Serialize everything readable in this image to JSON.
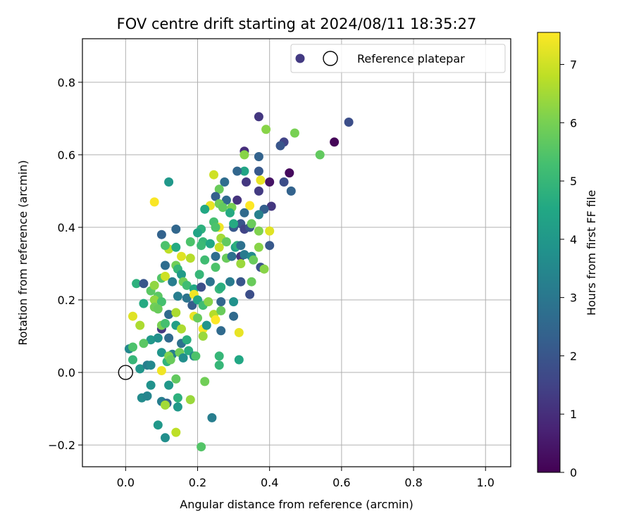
{
  "chart_data": {
    "type": "scatter",
    "title": "FOV centre drift starting at 2024/08/11 18:35:27",
    "xlabel": "Angular distance from reference (arcmin)",
    "ylabel": "Rotation from reference (arcmin)",
    "xlim": [
      -0.12,
      1.07
    ],
    "ylim": [
      -0.26,
      0.92
    ],
    "xticks": [
      0.0,
      0.2,
      0.4,
      0.6,
      0.8,
      1.0
    ],
    "xtick_labels": [
      "0.0",
      "0.2",
      "0.4",
      "0.6",
      "0.8",
      "1.0"
    ],
    "yticks": [
      -0.2,
      0.0,
      0.2,
      0.4,
      0.6,
      0.8
    ],
    "ytick_labels": [
      "−0.2",
      "0.0",
      "0.2",
      "0.4",
      "0.6",
      "0.8"
    ],
    "grid": true,
    "legend": {
      "placement": "top-right",
      "entries": [
        "Reference platepar"
      ]
    },
    "reference_point": {
      "x": 0.0,
      "y": 0.0
    },
    "colorbar": {
      "label": "Hours from first FF file",
      "min": 0,
      "max": 7.55,
      "ticks": [
        0,
        1,
        2,
        3,
        4,
        5,
        6,
        7
      ],
      "tick_labels": [
        "0",
        "1",
        "2",
        "3",
        "4",
        "5",
        "6",
        "7"
      ],
      "colormap": "viridis"
    },
    "points": [
      [
        0.62,
        0.69,
        1.8
      ],
      [
        0.58,
        0.635,
        0.1
      ],
      [
        0.47,
        0.66,
        6.0
      ],
      [
        0.39,
        0.67,
        6.2
      ],
      [
        0.37,
        0.705,
        1.2
      ],
      [
        0.44,
        0.635,
        1.5
      ],
      [
        0.43,
        0.625,
        2.0
      ],
      [
        0.54,
        0.6,
        5.7
      ],
      [
        0.33,
        0.61,
        1.0
      ],
      [
        0.33,
        0.6,
        6.2
      ],
      [
        0.37,
        0.595,
        2.4
      ],
      [
        0.455,
        0.55,
        0.2
      ],
      [
        0.37,
        0.555,
        2.1
      ],
      [
        0.33,
        0.555,
        4.4
      ],
      [
        0.31,
        0.555,
        2.5
      ],
      [
        0.245,
        0.545,
        7.0
      ],
      [
        0.4,
        0.525,
        0.4
      ],
      [
        0.375,
        0.53,
        7.3
      ],
      [
        0.44,
        0.525,
        1.8
      ],
      [
        0.335,
        0.525,
        1.2
      ],
      [
        0.275,
        0.525,
        2.7
      ],
      [
        0.26,
        0.505,
        5.8
      ],
      [
        0.12,
        0.525,
        4.0
      ],
      [
        0.37,
        0.5,
        1.3
      ],
      [
        0.46,
        0.5,
        2.4
      ],
      [
        0.08,
        0.47,
        7.5
      ],
      [
        0.25,
        0.485,
        2.3
      ],
      [
        0.28,
        0.475,
        2.6
      ],
      [
        0.31,
        0.475,
        1.1
      ],
      [
        0.345,
        0.46,
        7.6
      ],
      [
        0.235,
        0.46,
        7.3
      ],
      [
        0.26,
        0.465,
        5.9
      ],
      [
        0.27,
        0.455,
        5.7
      ],
      [
        0.295,
        0.455,
        6.0
      ],
      [
        0.22,
        0.45,
        4.5
      ],
      [
        0.29,
        0.44,
        4.6
      ],
      [
        0.405,
        0.458,
        1.2
      ],
      [
        0.385,
        0.45,
        2.3
      ],
      [
        0.33,
        0.44,
        2.6
      ],
      [
        0.37,
        0.435,
        3.3
      ],
      [
        0.245,
        0.415,
        5.3
      ],
      [
        0.26,
        0.4,
        7.4
      ],
      [
        0.3,
        0.4,
        2.1
      ],
      [
        0.32,
        0.41,
        2.0
      ],
      [
        0.33,
        0.395,
        1.5
      ],
      [
        0.345,
        0.4,
        2.0
      ],
      [
        0.35,
        0.41,
        5.8
      ],
      [
        0.3,
        0.41,
        4.6
      ],
      [
        0.25,
        0.4,
        5.4
      ],
      [
        0.21,
        0.395,
        4.8
      ],
      [
        0.14,
        0.395,
        2.5
      ],
      [
        0.1,
        0.38,
        2.4
      ],
      [
        0.2,
        0.385,
        4.4
      ],
      [
        0.215,
        0.36,
        5.0
      ],
      [
        0.18,
        0.36,
        5.4
      ],
      [
        0.12,
        0.34,
        6.8
      ],
      [
        0.11,
        0.35,
        5.4
      ],
      [
        0.14,
        0.345,
        4.6
      ],
      [
        0.21,
        0.35,
        5.1
      ],
      [
        0.235,
        0.355,
        4.5
      ],
      [
        0.265,
        0.37,
        6.5
      ],
      [
        0.28,
        0.36,
        5.7
      ],
      [
        0.305,
        0.345,
        4.3
      ],
      [
        0.31,
        0.35,
        4.8
      ],
      [
        0.32,
        0.35,
        2.8
      ],
      [
        0.4,
        0.35,
        2.1
      ],
      [
        0.37,
        0.345,
        6.2
      ],
      [
        0.4,
        0.39,
        7.2
      ],
      [
        0.37,
        0.39,
        6.1
      ],
      [
        0.26,
        0.345,
        6.9
      ],
      [
        0.155,
        0.32,
        7.2
      ],
      [
        0.18,
        0.315,
        6.7
      ],
      [
        0.22,
        0.31,
        5.2
      ],
      [
        0.28,
        0.315,
        5.8
      ],
      [
        0.295,
        0.32,
        2.8
      ],
      [
        0.32,
        0.32,
        1.1
      ],
      [
        0.33,
        0.325,
        3.1
      ],
      [
        0.35,
        0.32,
        3.6
      ],
      [
        0.355,
        0.31,
        5.8
      ],
      [
        0.25,
        0.32,
        2.7
      ],
      [
        0.11,
        0.295,
        2.7
      ],
      [
        0.14,
        0.295,
        5.9
      ],
      [
        0.145,
        0.285,
        5.0
      ],
      [
        0.155,
        0.27,
        4.1
      ],
      [
        0.205,
        0.27,
        5.0
      ],
      [
        0.25,
        0.29,
        5.4
      ],
      [
        0.32,
        0.3,
        6.4
      ],
      [
        0.375,
        0.29,
        1.9
      ],
      [
        0.385,
        0.285,
        6.2
      ],
      [
        0.1,
        0.26,
        5.5
      ],
      [
        0.11,
        0.265,
        7.0
      ],
      [
        0.13,
        0.25,
        3.2
      ],
      [
        0.16,
        0.25,
        5.9
      ],
      [
        0.17,
        0.24,
        5.2
      ],
      [
        0.19,
        0.23,
        4.5
      ],
      [
        0.21,
        0.235,
        1.8
      ],
      [
        0.235,
        0.25,
        2.9
      ],
      [
        0.26,
        0.23,
        5.0
      ],
      [
        0.265,
        0.235,
        4.7
      ],
      [
        0.29,
        0.25,
        3.1
      ],
      [
        0.32,
        0.25,
        2.0
      ],
      [
        0.35,
        0.25,
        5.8
      ],
      [
        0.345,
        0.215,
        1.8
      ],
      [
        0.03,
        0.245,
        4.8
      ],
      [
        0.05,
        0.245,
        2.0
      ],
      [
        0.07,
        0.225,
        5.6
      ],
      [
        0.08,
        0.24,
        6.3
      ],
      [
        0.09,
        0.21,
        5.6
      ],
      [
        0.08,
        0.2,
        6.3
      ],
      [
        0.1,
        0.195,
        5.3
      ],
      [
        0.05,
        0.19,
        4.6
      ],
      [
        0.08,
        0.18,
        5.9
      ],
      [
        0.09,
        0.175,
        5.8
      ],
      [
        0.12,
        0.16,
        2.6
      ],
      [
        0.14,
        0.165,
        6.6
      ],
      [
        0.145,
        0.21,
        3.2
      ],
      [
        0.17,
        0.205,
        2.9
      ],
      [
        0.185,
        0.185,
        2.2
      ],
      [
        0.19,
        0.215,
        7.4
      ],
      [
        0.2,
        0.2,
        4.4
      ],
      [
        0.215,
        0.185,
        5.2
      ],
      [
        0.23,
        0.195,
        6.2
      ],
      [
        0.245,
        0.16,
        6.7
      ],
      [
        0.265,
        0.195,
        2.5
      ],
      [
        0.265,
        0.17,
        5.8
      ],
      [
        0.3,
        0.195,
        3.8
      ],
      [
        0.3,
        0.155,
        2.6
      ],
      [
        0.02,
        0.155,
        7.2
      ],
      [
        0.04,
        0.13,
        6.6
      ],
      [
        0.1,
        0.12,
        1.2
      ],
      [
        0.1,
        0.13,
        6.0
      ],
      [
        0.11,
        0.135,
        5.3
      ],
      [
        0.14,
        0.13,
        4.2
      ],
      [
        0.155,
        0.12,
        6.6
      ],
      [
        0.19,
        0.155,
        7.3
      ],
      [
        0.2,
        0.15,
        5.8
      ],
      [
        0.215,
        0.12,
        7.5
      ],
      [
        0.225,
        0.13,
        3.9
      ],
      [
        0.25,
        0.145,
        7.6
      ],
      [
        0.265,
        0.115,
        2.6
      ],
      [
        0.315,
        0.11,
        7.3
      ],
      [
        0.07,
        0.09,
        4.0
      ],
      [
        0.09,
        0.095,
        3.7
      ],
      [
        0.12,
        0.095,
        2.6
      ],
      [
        0.155,
        0.08,
        2.8
      ],
      [
        0.17,
        0.09,
        4.7
      ],
      [
        0.215,
        0.1,
        6.4
      ],
      [
        0.1,
        0.055,
        3.9
      ],
      [
        0.13,
        0.05,
        3.2
      ],
      [
        0.15,
        0.055,
        5.9
      ],
      [
        0.175,
        0.06,
        4.7
      ],
      [
        0.19,
        0.045,
        3.4
      ],
      [
        0.16,
        0.04,
        3.7
      ],
      [
        0.01,
        0.065,
        3.5
      ],
      [
        0.02,
        0.07,
        5.4
      ],
      [
        0.02,
        0.035,
        5.0
      ],
      [
        0.05,
        0.08,
        5.6
      ],
      [
        0.04,
        0.01,
        3.9
      ],
      [
        0.06,
        0.02,
        3.2
      ],
      [
        0.07,
        0.02,
        3.5
      ],
      [
        0.1,
        0.005,
        7.4
      ],
      [
        0.115,
        0.03,
        4.9
      ],
      [
        0.12,
        0.045,
        6.1
      ],
      [
        0.125,
        0.035,
        5.8
      ],
      [
        0.195,
        0.045,
        5.4
      ],
      [
        0.26,
        0.045,
        5.0
      ],
      [
        0.26,
        0.02,
        5.0
      ],
      [
        0.315,
        0.035,
        4.5
      ],
      [
        0.07,
        -0.035,
        3.8
      ],
      [
        0.14,
        -0.018,
        5.7
      ],
      [
        0.12,
        -0.035,
        4.0
      ],
      [
        0.22,
        -0.025,
        5.9
      ],
      [
        0.045,
        -0.07,
        3.6
      ],
      [
        0.06,
        -0.065,
        3.4
      ],
      [
        0.1,
        -0.08,
        3.2
      ],
      [
        0.115,
        -0.085,
        2.4
      ],
      [
        0.11,
        -0.09,
        6.5
      ],
      [
        0.145,
        -0.095,
        4.0
      ],
      [
        0.145,
        -0.07,
        4.8
      ],
      [
        0.18,
        -0.075,
        6.4
      ],
      [
        0.24,
        -0.125,
        3.2
      ],
      [
        0.09,
        -0.145,
        4.0
      ],
      [
        0.14,
        -0.165,
        6.8
      ],
      [
        0.11,
        -0.18,
        3.7
      ],
      [
        0.21,
        -0.205,
        5.5
      ]
    ]
  }
}
